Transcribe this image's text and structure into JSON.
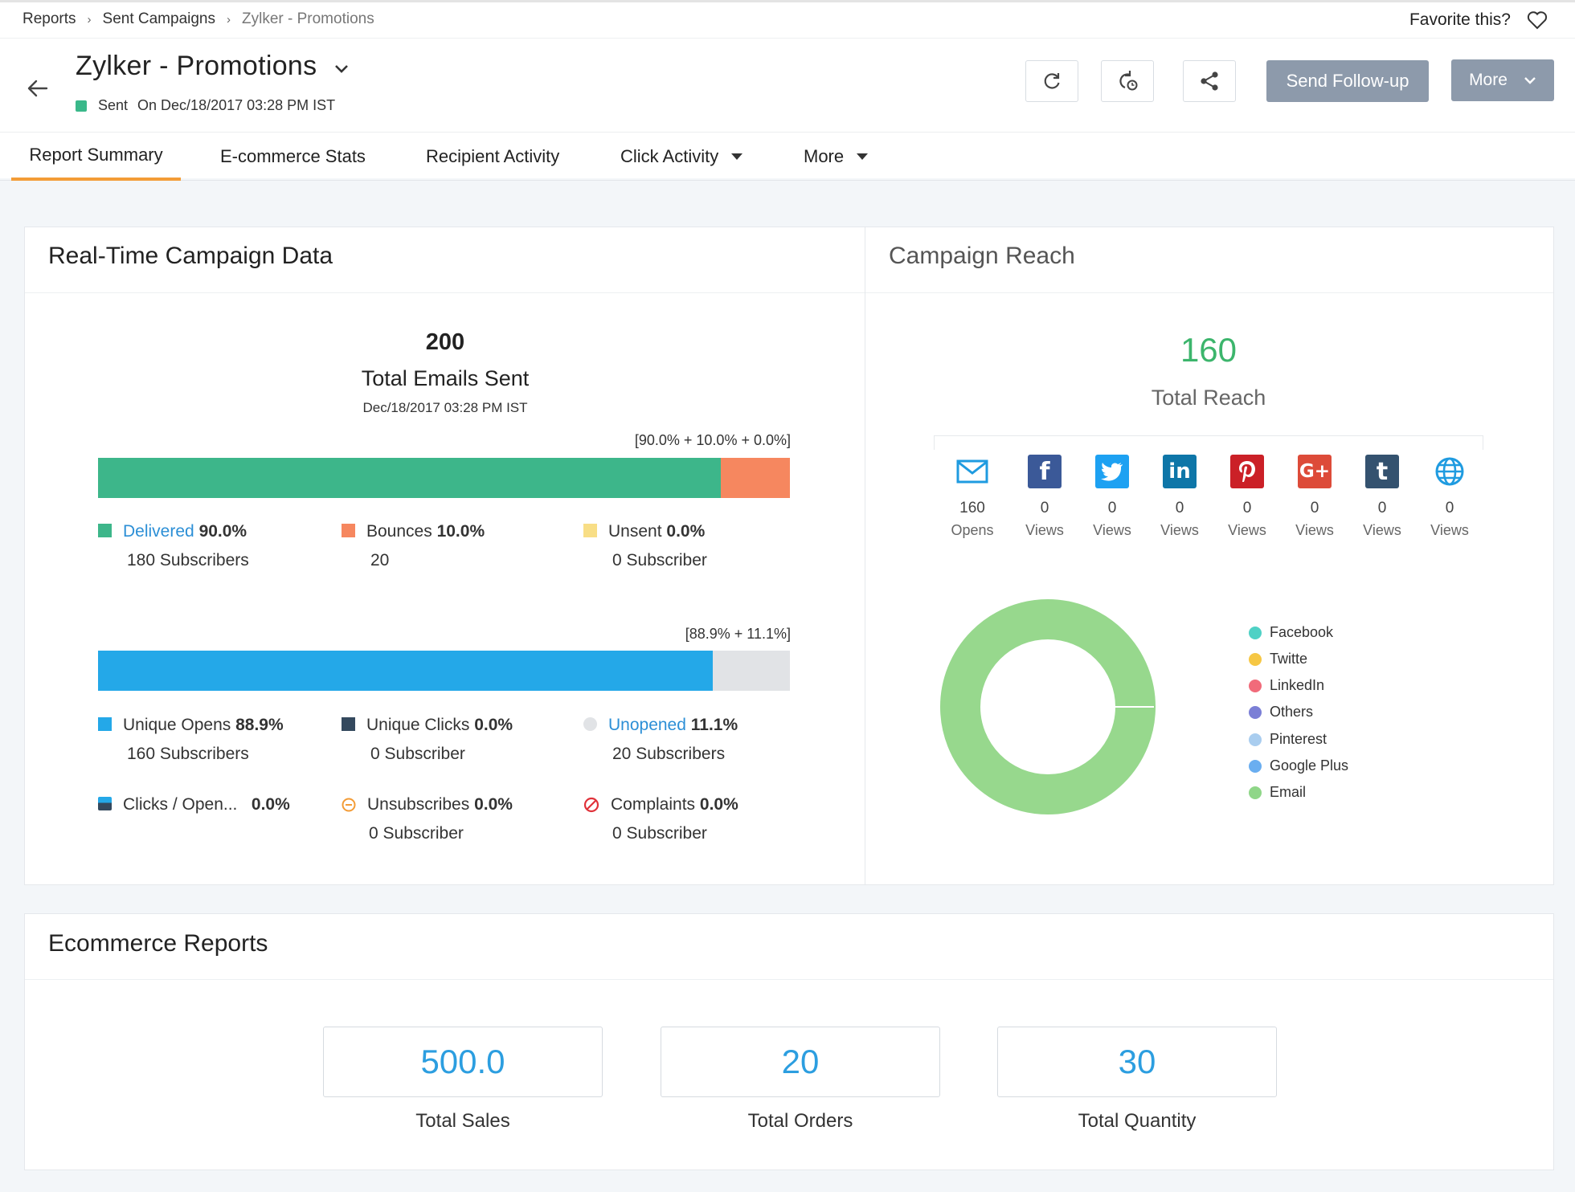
{
  "breadcrumb": [
    "Reports",
    "Sent Campaigns",
    "Zylker - Promotions"
  ],
  "favorite_label": "Favorite this?",
  "campaign": {
    "title": "Zylker - Promotions",
    "status": "Sent",
    "sent_on": "On Dec/18/2017 03:28 PM IST"
  },
  "actions": {
    "follow_up": "Send Follow-up",
    "more": "More"
  },
  "tabs": [
    "Report Summary",
    "E-commerce Stats",
    "Recipient Activity",
    "Click Activity",
    "More"
  ],
  "realtime": {
    "title": "Real-Time Campaign Data",
    "total": "200",
    "total_label": "Total Emails Sent",
    "date": "Dec/18/2017 03:28 PM IST",
    "bar1_caption": "[90.0% + 10.0% + 0.0%]",
    "bar1": [
      {
        "value": 90.0,
        "color": "#3db68a"
      },
      {
        "value": 10.0,
        "color": "#f6875f"
      },
      {
        "value": 0.0,
        "color": "#f6d970"
      }
    ],
    "bar2_caption": "[88.9% + 11.1%]",
    "bar2": [
      {
        "value": 88.9,
        "color": "#24a8e8"
      },
      {
        "value": 11.1,
        "color": "#e1e3e6"
      }
    ],
    "delivered": {
      "label": "Delivered",
      "pct": "90.0%",
      "sub": "180 Subscribers",
      "color": "#3db68a"
    },
    "bounces": {
      "label": "Bounces",
      "pct": "10.0%",
      "sub": "20",
      "color": "#f6875f"
    },
    "unsent": {
      "label": "Unsent",
      "pct": "0.0%",
      "sub": "0 Subscriber",
      "color": "#f8de86"
    },
    "unique_opens": {
      "label": "Unique Opens",
      "pct": "88.9%",
      "sub": "160 Subscribers",
      "color": "#24a8e8"
    },
    "unique_clicks": {
      "label": "Unique Clicks",
      "pct": "0.0%",
      "sub": "0 Subscriber",
      "color": "#34495e"
    },
    "unopened": {
      "label": "Unopened",
      "pct": "11.1%",
      "sub": "20 Subscribers",
      "color": "#e1e3e6"
    },
    "clicks_open": {
      "label": "Clicks / Open...",
      "pct": "0.0%"
    },
    "unsubscribes": {
      "label": "Unsubscribes",
      "pct": "0.0%",
      "sub": "0 Subscriber"
    },
    "complaints": {
      "label": "Complaints",
      "pct": "0.0%",
      "sub": "0 Subscriber"
    }
  },
  "reach": {
    "title": "Campaign Reach",
    "total": "160",
    "total_label": "Total Reach",
    "channels": [
      {
        "icon": "email-icon",
        "count": "160",
        "label": "Opens",
        "color": "#1f9be0"
      },
      {
        "icon": "facebook-icon",
        "count": "0",
        "label": "Views",
        "color": "#3b5998"
      },
      {
        "icon": "twitter-icon",
        "count": "0",
        "label": "Views",
        "color": "#1da1f2"
      },
      {
        "icon": "linkedin-icon",
        "count": "0",
        "label": "Views",
        "color": "#0e76a8"
      },
      {
        "icon": "pinterest-icon",
        "count": "0",
        "label": "Views",
        "color": "#cb2027"
      },
      {
        "icon": "google-plus-icon",
        "count": "0",
        "label": "Views",
        "color": "#dd4b39"
      },
      {
        "icon": "tumblr-icon",
        "count": "0",
        "label": "Views",
        "color": "#34526f"
      },
      {
        "icon": "web-icon",
        "count": "0",
        "label": "Views",
        "color": "#1f9be0"
      }
    ],
    "donut_legend": [
      {
        "label": "Facebook",
        "color": "#4fd1c5"
      },
      {
        "label": "Twitte",
        "color": "#f6c744"
      },
      {
        "label": "LinkedIn",
        "color": "#f16b7a"
      },
      {
        "label": "Others",
        "color": "#7b7fd6"
      },
      {
        "label": "Pinterest",
        "color": "#a9cdef"
      },
      {
        "label": "Google Plus",
        "color": "#6aaef0"
      },
      {
        "label": "Email",
        "color": "#8fd688"
      }
    ],
    "donut_color": "#97d88d"
  },
  "ecommerce": {
    "title": "Ecommerce Reports",
    "metrics": [
      {
        "value": "500.0",
        "label": "Total Sales"
      },
      {
        "value": "20",
        "label": "Total Orders"
      },
      {
        "value": "30",
        "label": "Total Quantity"
      }
    ]
  }
}
